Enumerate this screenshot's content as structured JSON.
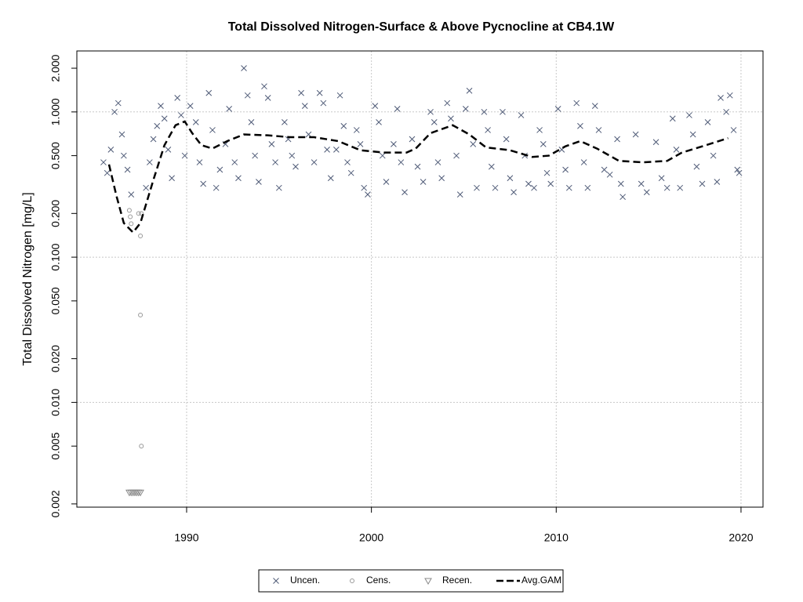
{
  "chart_data": {
    "type": "scatter",
    "title": "Total Dissolved Nitrogen-Surface & Above Pycnocline at CB4.1W",
    "y_label": "Total Dissolved Nitrogen [mg/L]",
    "log_y": true,
    "grid": true,
    "legend": "bottom",
    "xlim": [
      1984.06,
      2021.19
    ],
    "xticks": [
      1990,
      2000,
      2010,
      2020
    ],
    "ylim": [
      0.0019,
      2.63
    ],
    "yticks": [
      {
        "value": 0.002,
        "label": "0.002"
      },
      {
        "value": 0.005,
        "label": "0.005"
      },
      {
        "value": 0.01,
        "label": "0.010"
      },
      {
        "value": 0.02,
        "label": "0.020"
      },
      {
        "value": 0.05,
        "label": "0.050"
      },
      {
        "value": 0.1,
        "label": "0.100"
      },
      {
        "value": 0.2,
        "label": "0.200"
      },
      {
        "value": 0.5,
        "label": "0.500"
      },
      {
        "value": 1,
        "label": "1.000"
      },
      {
        "value": 2,
        "label": "2.000"
      }
    ],
    "series": [
      {
        "name": "Uncen.",
        "marker": "x",
        "color": "#4f5b77",
        "x": [
          1985.5,
          1985.7,
          1985.9,
          1986.1,
          1986.3,
          1986.5,
          1986.6,
          1986.8,
          1987.0,
          1987.8,
          1988.0,
          1988.2,
          1988.4,
          1988.6,
          1988.8,
          1989.0,
          1989.2,
          1989.5,
          1989.7,
          1989.9,
          1990.2,
          1990.5,
          1990.7,
          1990.9,
          1991.2,
          1991.4,
          1991.6,
          1991.8,
          1992.1,
          1992.3,
          1992.6,
          1992.8,
          1993.1,
          1993.3,
          1993.5,
          1993.7,
          1993.9,
          1994.2,
          1994.4,
          1994.6,
          1994.8,
          1995.0,
          1995.3,
          1995.5,
          1995.7,
          1995.9,
          1996.2,
          1996.4,
          1996.6,
          1996.9,
          1997.2,
          1997.4,
          1997.6,
          1997.8,
          1998.1,
          1998.3,
          1998.5,
          1998.7,
          1998.9,
          1999.2,
          1999.4,
          1999.6,
          1999.8,
          2000.2,
          2000.4,
          2000.6,
          2000.8,
          2001.2,
          2001.4,
          2001.6,
          2001.8,
          2002.2,
          2002.5,
          2002.8,
          2003.2,
          2003.4,
          2003.6,
          2003.8,
          2004.1,
          2004.3,
          2004.6,
          2004.8,
          2005.1,
          2005.3,
          2005.5,
          2005.7,
          2006.1,
          2006.3,
          2006.5,
          2006.7,
          2007.1,
          2007.3,
          2007.5,
          2007.7,
          2008.1,
          2008.3,
          2008.5,
          2008.8,
          2009.1,
          2009.3,
          2009.5,
          2009.7,
          2010.1,
          2010.3,
          2010.5,
          2010.7,
          2011.1,
          2011.3,
          2011.5,
          2011.7,
          2012.1,
          2012.3,
          2012.6,
          2012.9,
          2013.3,
          2013.5,
          2013.6,
          2014.3,
          2014.6,
          2014.9,
          2015.4,
          2015.7,
          2016.0,
          2016.3,
          2016.5,
          2016.7,
          2017.2,
          2017.4,
          2017.6,
          2017.9,
          2018.2,
          2018.5,
          2018.7,
          2018.9,
          2019.2,
          2019.4,
          2019.6,
          2019.8,
          2019.9
        ],
        "values": [
          0.45,
          0.38,
          0.55,
          1.0,
          1.15,
          0.7,
          0.5,
          0.4,
          0.27,
          0.3,
          0.45,
          0.65,
          0.8,
          1.1,
          0.9,
          0.55,
          0.35,
          1.25,
          0.95,
          0.5,
          1.1,
          0.85,
          0.45,
          0.32,
          1.35,
          0.75,
          0.3,
          0.4,
          0.6,
          1.05,
          0.45,
          0.35,
          2.0,
          1.3,
          0.85,
          0.5,
          0.33,
          1.5,
          1.25,
          0.6,
          0.45,
          0.3,
          0.85,
          0.65,
          0.5,
          0.42,
          1.35,
          1.1,
          0.7,
          0.45,
          1.35,
          1.15,
          0.55,
          0.35,
          0.55,
          1.3,
          0.8,
          0.45,
          0.38,
          0.75,
          0.6,
          0.3,
          0.27,
          1.1,
          0.85,
          0.5,
          0.33,
          0.6,
          1.05,
          0.45,
          0.28,
          0.65,
          0.42,
          0.33,
          1.0,
          0.85,
          0.45,
          0.35,
          1.15,
          0.9,
          0.5,
          0.27,
          1.05,
          1.4,
          0.6,
          0.3,
          1.0,
          0.75,
          0.42,
          0.3,
          1.0,
          0.65,
          0.35,
          0.28,
          0.95,
          0.5,
          0.32,
          0.3,
          0.75,
          0.6,
          0.38,
          0.32,
          1.05,
          0.55,
          0.4,
          0.3,
          1.15,
          0.8,
          0.45,
          0.3,
          1.1,
          0.75,
          0.4,
          0.37,
          0.65,
          0.32,
          0.26,
          0.7,
          0.32,
          0.28,
          0.62,
          0.35,
          0.3,
          0.9,
          0.55,
          0.3,
          0.95,
          0.7,
          0.42,
          0.32,
          0.85,
          0.5,
          0.33,
          1.25,
          1.0,
          1.3,
          0.75,
          0.4,
          0.38
        ]
      },
      {
        "name": "Cens.",
        "marker": "circle",
        "color": "#999999",
        "x": [
          1986.9,
          1986.95,
          1987.0,
          1987.4,
          1987.55,
          1987.5,
          1987.5,
          1987.55
        ],
        "values": [
          0.21,
          0.19,
          0.17,
          0.2,
          0.2,
          0.14,
          0.04,
          0.005
        ]
      },
      {
        "name": "Recen.",
        "marker": "triangle",
        "color": "#888888",
        "x": [
          1986.9,
          1987.0,
          1987.1,
          1987.2,
          1987.3,
          1987.4,
          1987.5
        ],
        "values": [
          0.0024,
          0.0024,
          0.0024,
          0.0024,
          0.0024,
          0.0024,
          0.0024
        ]
      },
      {
        "name": "Avg.GAM",
        "marker": "dashed-line",
        "color": "#000000",
        "x": [
          1985.8,
          1986.2,
          1986.6,
          1987.1,
          1987.5,
          1988.2,
          1988.8,
          1989.4,
          1989.9,
          1990.3,
          1990.8,
          1991.4,
          1992.2,
          1993.1,
          1994.4,
          1995.6,
          1996.9,
          1998.2,
          1999.4,
          2000.7,
          2001.9,
          2002.4,
          2003.2,
          2004.4,
          2005.3,
          2006.2,
          2007.5,
          2008.7,
          2009.6,
          2010.5,
          2011.3,
          2012.2,
          2013.4,
          2014.7,
          2016.0,
          2016.8,
          2018.1,
          2019.3
        ],
        "values": [
          0.435,
          0.265,
          0.172,
          0.148,
          0.172,
          0.34,
          0.59,
          0.81,
          0.86,
          0.715,
          0.59,
          0.56,
          0.63,
          0.7,
          0.69,
          0.67,
          0.67,
          0.63,
          0.545,
          0.525,
          0.525,
          0.56,
          0.715,
          0.81,
          0.7,
          0.57,
          0.545,
          0.49,
          0.5,
          0.58,
          0.63,
          0.56,
          0.46,
          0.45,
          0.46,
          0.525,
          0.59,
          0.66
        ]
      }
    ]
  }
}
